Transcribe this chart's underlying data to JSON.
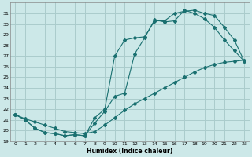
{
  "xlabel": "Humidex (Indice chaleur)",
  "bg_color": "#cce8e8",
  "grid_color": "#aacccc",
  "line_color": "#1a7070",
  "ylim": [
    19,
    32
  ],
  "xlim": [
    -0.5,
    23.5
  ],
  "yticks": [
    19,
    20,
    21,
    22,
    23,
    24,
    25,
    26,
    27,
    28,
    29,
    30,
    31
  ],
  "xticks": [
    0,
    1,
    2,
    3,
    4,
    5,
    6,
    7,
    8,
    9,
    10,
    11,
    12,
    13,
    14,
    15,
    16,
    17,
    18,
    19,
    20,
    21,
    22,
    23
  ],
  "curve1_x": [
    0,
    1,
    2,
    3,
    4,
    5,
    6,
    7,
    8,
    9,
    10,
    11,
    12,
    13,
    14,
    15,
    16,
    17,
    18,
    19,
    20,
    21,
    22,
    23
  ],
  "curve1_y": [
    21.5,
    21.1,
    20.8,
    20.5,
    20.2,
    19.9,
    19.8,
    19.7,
    19.9,
    20.5,
    21.2,
    21.9,
    22.5,
    23.0,
    23.5,
    24.0,
    24.5,
    25.0,
    25.5,
    25.9,
    26.2,
    26.4,
    26.5,
    26.6
  ],
  "curve2_x": [
    0,
    1,
    2,
    3,
    4,
    5,
    6,
    7,
    8,
    9,
    10,
    11,
    12,
    13,
    14,
    15,
    16,
    17,
    18,
    19,
    20,
    21,
    22,
    23
  ],
  "curve2_y": [
    21.5,
    21.0,
    20.2,
    19.8,
    19.7,
    19.5,
    19.6,
    19.5,
    20.7,
    21.8,
    23.2,
    23.5,
    27.2,
    28.7,
    30.4,
    30.2,
    30.3,
    31.3,
    31.0,
    30.5,
    29.7,
    28.5,
    27.5,
    26.5
  ],
  "curve3_x": [
    0,
    1,
    2,
    3,
    4,
    5,
    6,
    7,
    8,
    9,
    10,
    11,
    12,
    13,
    14,
    15,
    16,
    17,
    18,
    19,
    20,
    21,
    22,
    23
  ],
  "curve3_y": [
    21.5,
    21.0,
    20.2,
    19.8,
    19.7,
    19.5,
    19.6,
    19.5,
    21.2,
    22.0,
    27.0,
    28.5,
    28.7,
    28.8,
    30.3,
    30.3,
    31.0,
    31.2,
    31.3,
    31.0,
    30.8,
    29.7,
    28.5,
    26.5
  ]
}
